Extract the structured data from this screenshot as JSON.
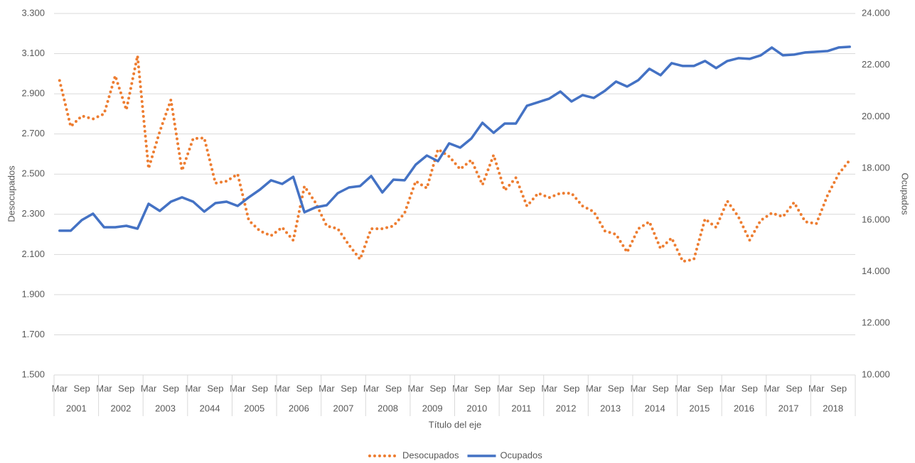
{
  "chart_data": {
    "type": "line",
    "x_label": "Título del eje",
    "y_label": "Desocupados",
    "y2_label": "Ocupados",
    "categories": [
      "Mar",
      null,
      "Sep",
      null,
      "Mar",
      null,
      "Sep",
      null,
      "Mar",
      null,
      "Sep",
      null,
      "Mar",
      null,
      "Sep",
      null,
      "Mar",
      null,
      "Sep",
      null,
      "Mar",
      null,
      "Sep",
      null,
      "Mar",
      null,
      "Sep",
      null,
      "Mar",
      null,
      "Sep",
      null,
      "Mar",
      null,
      "Sep",
      null,
      "Mar",
      null,
      "Sep",
      null,
      "Mar",
      null,
      "Sep",
      null,
      "Mar",
      null,
      "Sep",
      null,
      "Mar",
      null,
      "Sep",
      null,
      "Mar",
      null,
      "Sep",
      null,
      "Mar",
      null,
      "Sep",
      null,
      "Mar",
      null,
      "Sep",
      null,
      "Mar",
      null,
      "Sep",
      null,
      "Mar",
      null,
      "Sep",
      null
    ],
    "category_groups": [
      "2001",
      "2002",
      "2003",
      "2044",
      "2005",
      "2006",
      "2007",
      "2008",
      "2009",
      "2010",
      "2011",
      "2012",
      "2013",
      "2014",
      "2015",
      "2016",
      "2017",
      "2018"
    ],
    "series": [
      {
        "name": "Desocupados",
        "color": "#ed7d31",
        "style": "dotted",
        "axis": "y",
        "values": [
          2966,
          2737,
          2790,
          2775,
          2800,
          2990,
          2820,
          3090,
          2528,
          2712,
          2870,
          2518,
          2677,
          2680,
          2455,
          2465,
          2500,
          2270,
          2217,
          2193,
          2235,
          2170,
          2440,
          2358,
          2242,
          2228,
          2147,
          2076,
          2228,
          2228,
          2242,
          2306,
          2465,
          2430,
          2624,
          2588,
          2525,
          2570,
          2447,
          2595,
          2419,
          2482,
          2341,
          2405,
          2383,
          2405,
          2405,
          2341,
          2313,
          2217,
          2200,
          2111,
          2228,
          2263,
          2129,
          2182,
          2065,
          2076,
          2277,
          2235,
          2366,
          2288,
          2171,
          2270,
          2306,
          2288,
          2359,
          2263,
          2253,
          2394,
          2500,
          2570
        ]
      },
      {
        "name": "Ocupados",
        "color": "#4472c4",
        "style": "solid",
        "axis": "y2",
        "values": [
          15585,
          15585,
          16000,
          16245,
          15722,
          15722,
          15777,
          15667,
          16630,
          16355,
          16712,
          16878,
          16712,
          16327,
          16657,
          16712,
          16547,
          16878,
          17180,
          17538,
          17400,
          17675,
          16300,
          16492,
          16575,
          17042,
          17262,
          17317,
          17703,
          17070,
          17565,
          17538,
          18143,
          18500,
          18280,
          18968,
          18803,
          19160,
          19766,
          19380,
          19738,
          19738,
          20426,
          20564,
          20701,
          20976,
          20591,
          20839,
          20729,
          21004,
          21362,
          21169,
          21417,
          21857,
          21609,
          22077,
          21967,
          21967,
          22160,
          21885,
          22160,
          22270,
          22242,
          22380,
          22683,
          22380,
          22407,
          22490,
          22517,
          22545,
          22683,
          22710
        ]
      }
    ],
    "ylim": [
      1500,
      3300
    ],
    "yticks": [
      {
        "value": 1500,
        "label": "1.500"
      },
      {
        "value": 1700,
        "label": "1.700"
      },
      {
        "value": 1900,
        "label": "1.900"
      },
      {
        "value": 2100,
        "label": "2.100"
      },
      {
        "value": 2300,
        "label": "2.300"
      },
      {
        "value": 2500,
        "label": "2.500"
      },
      {
        "value": 2700,
        "label": "2.700"
      },
      {
        "value": 2900,
        "label": "2.900"
      },
      {
        "value": 3100,
        "label": "3.100"
      },
      {
        "value": 3300,
        "label": "3.300"
      }
    ],
    "y2lim": [
      10000,
      24000
    ],
    "y2ticks": [
      {
        "value": 10000,
        "label": "10.000"
      },
      {
        "value": 12000,
        "label": "12.000"
      },
      {
        "value": 14000,
        "label": "14.000"
      },
      {
        "value": 16000,
        "label": "16.000"
      },
      {
        "value": 18000,
        "label": "18.000"
      },
      {
        "value": 20000,
        "label": "20.000"
      },
      {
        "value": 22000,
        "label": "22.000"
      },
      {
        "value": 24000,
        "label": "24.000"
      }
    ],
    "grid": true,
    "legend": "bottom"
  }
}
